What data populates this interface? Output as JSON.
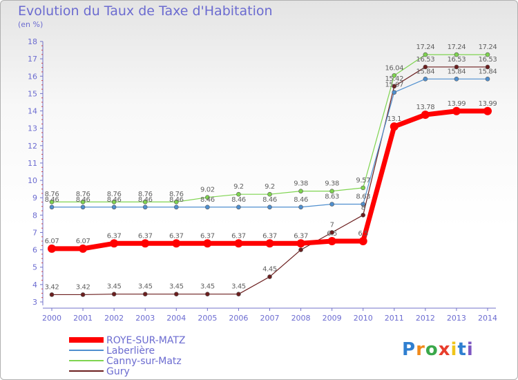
{
  "title": "Evolution du Taux de Taxe d'Habitation",
  "unit": "(en %)",
  "colors": {
    "ROYE-SUR-MATZ": "#ff0000",
    "Laberlière": "#4f8fcf",
    "Canny-sur-Matz": "#7ed44f",
    "Gury": "#6b1e1e",
    "text": "#6b6bd0",
    "label": "#606060"
  },
  "logo": "Proxiti",
  "chart_data": {
    "type": "line",
    "x": [
      "2000",
      "2001",
      "2002",
      "2003",
      "2004",
      "2005",
      "2006",
      "2007",
      "2008",
      "2009",
      "2010",
      "2011",
      "2012",
      "2013",
      "2014"
    ],
    "ylim": [
      3,
      18
    ],
    "yticks": [
      3,
      4,
      5,
      6,
      7,
      8,
      9,
      10,
      11,
      12,
      13,
      14,
      15,
      16,
      17,
      18
    ],
    "grid": false,
    "legend": "bottom-left",
    "series": [
      {
        "name": "Gury",
        "values": [
          3.42,
          3.42,
          3.45,
          3.45,
          3.45,
          3.45,
          3.45,
          4.45,
          6,
          7,
          8,
          15.42,
          16.53,
          16.53,
          16.53
        ],
        "labels": [
          "3.42",
          "3.42",
          "3.45",
          "3.45",
          "3.45",
          "3.45",
          "3.45",
          "4.45",
          "",
          "7",
          "8",
          "15.42",
          "16.53",
          "16.53",
          "16.53"
        ]
      },
      {
        "name": "Laberlière",
        "values": [
          8.46,
          8.46,
          8.46,
          8.46,
          8.46,
          8.46,
          8.46,
          8.46,
          8.46,
          8.63,
          8.63,
          15.07,
          15.84,
          15.84,
          15.84
        ],
        "labels": [
          "8.46",
          "8.46",
          "8.46",
          "8.46",
          "8.46",
          "8.46",
          "8.46",
          "8.46",
          "8.46",
          "8.63",
          "8.63",
          "15.07",
          "15.84",
          "15.84",
          "15.84"
        ]
      },
      {
        "name": "Canny-sur-Matz",
        "values": [
          8.76,
          8.76,
          8.76,
          8.76,
          8.76,
          9.02,
          9.2,
          9.2,
          9.38,
          9.38,
          9.57,
          16.04,
          17.24,
          17.24,
          17.24
        ],
        "labels": [
          "8.76",
          "8.76",
          "8.76",
          "8.76",
          "8.76",
          "9.02",
          "9.2",
          "9.2",
          "9.38",
          "9.38",
          "9.57",
          "16.04",
          "17.24",
          "17.24",
          "17.24"
        ]
      },
      {
        "name": "ROYE-SUR-MATZ",
        "values": [
          6.07,
          6.07,
          6.37,
          6.37,
          6.37,
          6.37,
          6.37,
          6.37,
          6.37,
          6.5,
          6.5,
          13.1,
          13.78,
          13.99,
          13.99
        ],
        "labels": [
          "6.07",
          "6.07",
          "6.37",
          "6.37",
          "6.37",
          "6.37",
          "6.37",
          "6.37",
          "6.37",
          "6.5",
          "6.5",
          "13.1",
          "13.78",
          "13.99",
          "13.99"
        ]
      }
    ],
    "legend_order": [
      "ROYE-SUR-MATZ",
      "Laberlière",
      "Canny-sur-Matz",
      "Gury"
    ]
  }
}
